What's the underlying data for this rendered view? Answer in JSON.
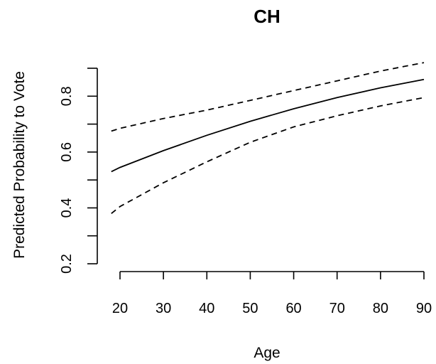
{
  "chart_data": {
    "type": "line",
    "title": "CH",
    "xlabel": "Age",
    "ylabel": "Predicted Probability to Vote",
    "xlim": [
      18,
      90
    ],
    "ylim": [
      0.2,
      0.9
    ],
    "x_ticks": [
      20,
      30,
      40,
      50,
      60,
      70,
      80,
      90
    ],
    "y_ticks_labeled": [
      0.2,
      0.4,
      0.6,
      0.8
    ],
    "y_ticks_minor": [
      0.3,
      0.5,
      0.7,
      0.9
    ],
    "grid": false,
    "legend": "none",
    "x": [
      18,
      20,
      30,
      40,
      50,
      60,
      70,
      80,
      90
    ],
    "series": [
      {
        "style": "solid",
        "values": [
          0.53,
          0.545,
          0.605,
          0.66,
          0.71,
          0.755,
          0.795,
          0.83,
          0.86
        ]
      },
      {
        "style": "dashed",
        "values": [
          0.675,
          0.685,
          0.72,
          0.75,
          0.785,
          0.82,
          0.855,
          0.89,
          0.92
        ]
      },
      {
        "style": "dashed",
        "values": [
          0.38,
          0.405,
          0.49,
          0.565,
          0.635,
          0.69,
          0.73,
          0.765,
          0.795
        ]
      }
    ]
  }
}
